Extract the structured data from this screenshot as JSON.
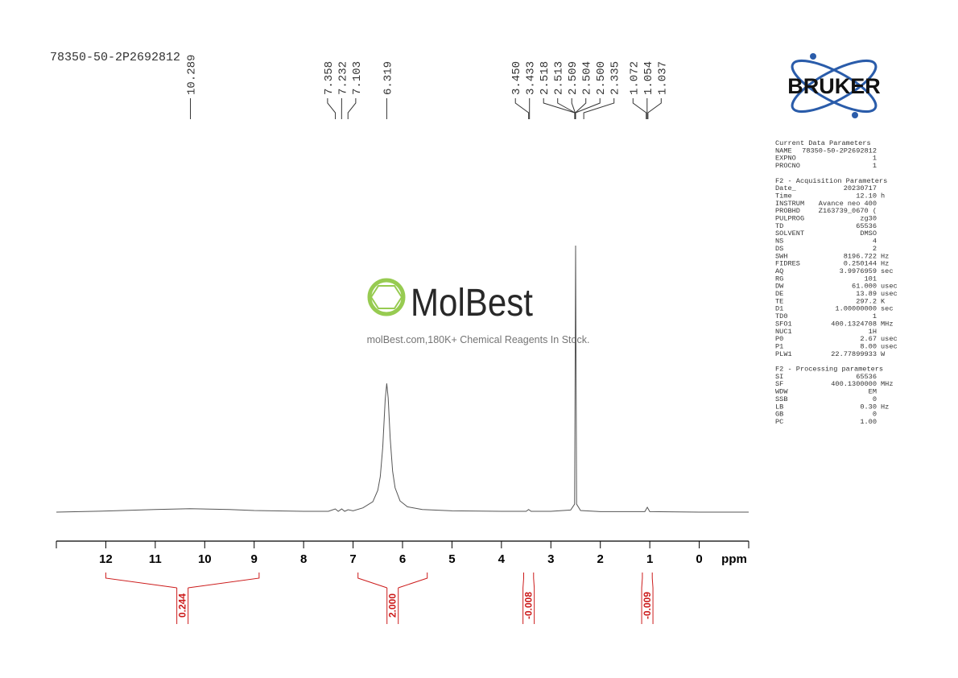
{
  "chart_data": {
    "type": "line",
    "title": "78350-50-2P2692812",
    "x_label": "ppm",
    "color": "#555555",
    "xlim": [
      13,
      -1
    ],
    "xticks": [
      12,
      11,
      10,
      9,
      8,
      7,
      6,
      5,
      4,
      3,
      2,
      1,
      0
    ],
    "ylim": [
      0,
      100
    ],
    "x": [
      13,
      12,
      11,
      10.3,
      9.5,
      9,
      8,
      7.5,
      7.36,
      7.3,
      7.23,
      7.17,
      7.1,
      7.0,
      6.8,
      6.6,
      6.5,
      6.45,
      6.4,
      6.35,
      6.319,
      6.29,
      6.25,
      6.2,
      6.15,
      6.05,
      5.9,
      5.6,
      5,
      4,
      3.5,
      3.45,
      3.4,
      3,
      2.6,
      2.52,
      2.5,
      2.48,
      2.4,
      2,
      1.1,
      1.05,
      1.0,
      0,
      -1
    ],
    "values": [
      0,
      0.4,
      1,
      1.3,
      1,
      0.6,
      0.3,
      0.3,
      1.2,
      0.3,
      1.2,
      0.3,
      0.9,
      0.5,
      1.6,
      3.9,
      8.2,
      13.3,
      24.3,
      42.3,
      48.3,
      42.8,
      27.9,
      15.3,
      9.1,
      4.2,
      2,
      1,
      0.5,
      0.3,
      0.3,
      1,
      0.3,
      0.3,
      0.8,
      3,
      100,
      3,
      0.6,
      0.2,
      0.2,
      1.8,
      0.2,
      0,
      0
    ],
    "peaks": [
      10.289,
      7.358,
      7.232,
      7.103,
      6.319,
      {
        "value": 3.45,
        "label": "3.450"
      },
      3.433,
      2.518,
      2.513,
      2.509,
      2.504,
      {
        "value": 2.5,
        "label": "2.500"
      },
      2.335,
      1.072,
      1.054,
      1.037
    ],
    "integral_color": "#cc1a1a",
    "integrals": [
      {
        "from": 12,
        "to": 8.9,
        "value": 0.244
      },
      {
        "from": 6.9,
        "to": 5.5,
        "value": 2,
        "label": "2.000"
      },
      {
        "from": 3.55,
        "to": 3.35,
        "value": -0.008
      },
      {
        "from": 1.15,
        "to": 0.95,
        "value": -0.009
      }
    ]
  },
  "logo": "BRUKER",
  "watermark": {
    "brand": "MolBest",
    "tagline": "molBest.com,180K+ Chemical Reagents In Stock."
  },
  "parameters": [
    {
      "title": "Current Data Parameters",
      "rows": [
        [
          "NAME",
          "78350-50-2P2692812",
          ""
        ],
        [
          "EXPNO",
          "1",
          ""
        ],
        [
          "PROCNO",
          "1",
          ""
        ]
      ]
    },
    {
      "title": "F2 - Acquisition Parameters",
      "rows": [
        [
          "Date_",
          "20230717",
          ""
        ],
        [
          "Time",
          "12.10",
          "h"
        ],
        [
          "INSTRUM",
          "Avance neo 400",
          ""
        ],
        [
          "PROBHD",
          "Z163739_0670 (",
          ""
        ],
        [
          "PULPROG",
          "zg30",
          ""
        ],
        [
          "TD",
          "65536",
          ""
        ],
        [
          "SOLVENT",
          "DMSO",
          ""
        ],
        [
          "NS",
          "4",
          ""
        ],
        [
          "DS",
          "2",
          ""
        ],
        [
          "SWH",
          "8196.722",
          "Hz"
        ],
        [
          "FIDRES",
          "0.250144",
          "Hz"
        ],
        [
          "AQ",
          "3.9976959",
          "sec"
        ],
        [
          "RG",
          "101",
          ""
        ],
        [
          "DW",
          "61.000",
          "usec"
        ],
        [
          "DE",
          "13.89",
          "usec"
        ],
        [
          "TE",
          "297.2",
          "K"
        ],
        [
          "D1",
          "1.00000000",
          "sec"
        ],
        [
          "TD0",
          "1",
          ""
        ],
        [
          "SFO1",
          "400.1324708",
          "MHz"
        ],
        [
          "NUC1",
          "1H",
          ""
        ],
        [
          "P0",
          "2.67",
          "usec"
        ],
        [
          "P1",
          "8.00",
          "usec"
        ],
        [
          "PLW1",
          "22.77899933",
          "W"
        ]
      ]
    },
    {
      "title": "F2 - Processing parameters",
      "rows": [
        [
          "SI",
          "65536",
          ""
        ],
        [
          "SF",
          "400.1300000",
          "MHz"
        ],
        [
          "WDW",
          "EM",
          ""
        ],
        [
          "SSB",
          "0",
          ""
        ],
        [
          "LB",
          "0.30",
          "Hz"
        ],
        [
          "GB",
          "0",
          ""
        ],
        [
          "PC",
          "1.00",
          ""
        ]
      ]
    }
  ]
}
